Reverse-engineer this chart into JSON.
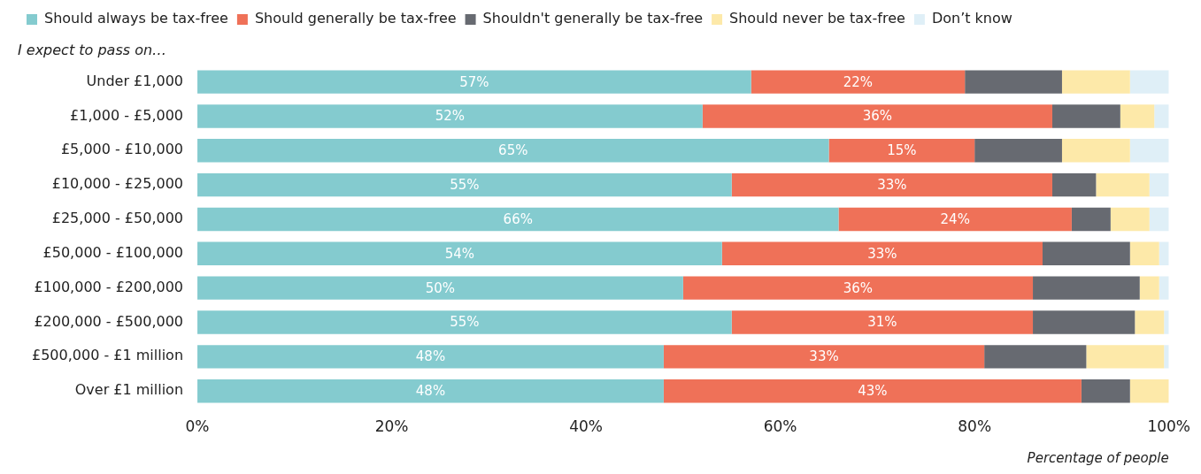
{
  "chart_data": {
    "type": "bar",
    "orientation": "horizontal",
    "stacked": true,
    "subtitle": "I expect to pass on…",
    "xlabel": "Percentage of people",
    "legend": "top",
    "categories": [
      "Under £1,000",
      "£1,000 - £5,000",
      "£5,000 - £10,000",
      "£10,000 - £25,000",
      "£25,000 - £50,000",
      "£50,000 - £100,000",
      "£100,000 - £200,000",
      "£200,000 - £500,000",
      "£500,000 - £1 million",
      "Over £1 million"
    ],
    "xlim": [
      0,
      100
    ],
    "xticks": [
      {
        "value": 0,
        "label": "0%"
      },
      {
        "value": 20,
        "label": "20%"
      },
      {
        "value": 40,
        "label": "40%"
      },
      {
        "value": 60,
        "label": "60%"
      },
      {
        "value": 80,
        "label": "80%"
      },
      {
        "value": 100,
        "label": "100%"
      }
    ],
    "series": [
      {
        "name": "Should always be tax-free",
        "color": "#84cbcf",
        "values": [
          57,
          52,
          65,
          55,
          66,
          54,
          50,
          55,
          48,
          48
        ],
        "value_labels": [
          "57%",
          "52%",
          "65%",
          "55%",
          "66%",
          "54%",
          "50%",
          "55%",
          "48%",
          "48%"
        ]
      },
      {
        "name": "Should generally be tax-free",
        "color": "#ef7158",
        "values": [
          22,
          36,
          15,
          33,
          24,
          33,
          36,
          31,
          33,
          43
        ],
        "value_labels": [
          "22%",
          "36%",
          "15%",
          "33%",
          "24%",
          "33%",
          "36%",
          "31%",
          "33%",
          "43%"
        ]
      },
      {
        "name": "Shouldn't generally be tax-free",
        "color": "#676a71",
        "values": [
          10,
          7,
          9,
          4.5,
          4,
          9,
          11,
          10.5,
          10.5,
          5
        ]
      },
      {
        "name": "Should never be tax-free",
        "color": "#fde9a9",
        "values": [
          7,
          3.5,
          7,
          5.5,
          4,
          3,
          2,
          3,
          8,
          4
        ]
      },
      {
        "name": "Don’t know",
        "color": "#dfeff7",
        "values": [
          4,
          1.5,
          4,
          2,
          2,
          1,
          1,
          0.5,
          0.5,
          0
        ]
      }
    ]
  }
}
